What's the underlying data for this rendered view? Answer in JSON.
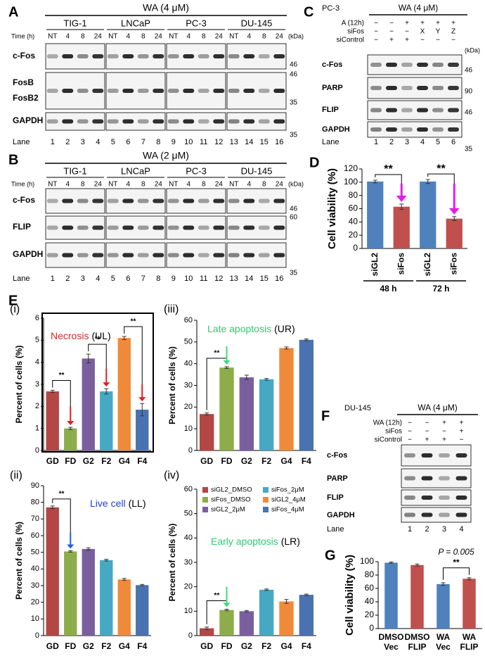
{
  "blots": {
    "A": {
      "letter": "A",
      "treatment": "WA (4 μM)",
      "cell_lines": [
        "TIG-1",
        "LNCaP",
        "PC-3",
        "DU-145"
      ],
      "time_label": "Time (h)",
      "times": [
        "NT",
        "4",
        "8",
        "24"
      ],
      "kda": "(kDa)",
      "rows": [
        "c-Fos",
        "FosB",
        "FosB2",
        "GAPDH"
      ],
      "markers": [
        "46",
        "46",
        "35",
        "35"
      ],
      "lane_label": "Lane",
      "lanes": [
        1,
        2,
        3,
        4,
        5,
        6,
        7,
        8,
        9,
        10,
        11,
        12,
        13,
        14,
        15,
        16
      ]
    },
    "B": {
      "letter": "B",
      "treatment": "WA (2 μM)",
      "cell_lines": [
        "TIG-1",
        "LNCaP",
        "PC-3",
        "DU-145"
      ],
      "time_label": "Time (h)",
      "times": [
        "NT",
        "4",
        "8",
        "24"
      ],
      "kda": "(kDa)",
      "rows": [
        "c-Fos",
        "FLIP",
        "GAPDH"
      ],
      "markers": [
        "46",
        "60",
        "35"
      ],
      "lane_label": "Lane",
      "lanes": [
        1,
        2,
        3,
        4,
        5,
        6,
        7,
        8,
        9,
        10,
        11,
        12,
        13,
        14,
        15,
        16
      ]
    },
    "C": {
      "letter": "C",
      "cell_line": "PC-3",
      "treatment": "WA (4 μM)",
      "conditions": [
        {
          "label": "A (12h)",
          "marks": [
            "−",
            "−",
            "+",
            "+",
            "+",
            "+"
          ]
        },
        {
          "label": "siFos",
          "marks": [
            "−",
            "−",
            "−",
            "X",
            "Y",
            "Z"
          ]
        },
        {
          "label": "siControl",
          "marks": [
            "−",
            "+",
            "+",
            "−",
            "−",
            "−"
          ]
        }
      ],
      "kda": "(kDa)",
      "rows": [
        "c-Fos",
        "PARP",
        "FLIP",
        "GAPDH"
      ],
      "markers": [
        "46",
        "90",
        "46",
        "35"
      ],
      "lane_label": "Lane",
      "lanes": [
        1,
        2,
        3,
        4,
        5,
        6
      ]
    },
    "F": {
      "letter": "F",
      "cell_line": "DU-145",
      "treatment": "WA (4 μM)",
      "conditions": [
        {
          "label": "WA (12h)",
          "marks": [
            "−",
            "−",
            "+",
            "+"
          ]
        },
        {
          "label": "siFos",
          "marks": [
            "−",
            "−",
            "−",
            "+"
          ]
        },
        {
          "label": "siControl",
          "marks": [
            "−",
            "+",
            "+",
            "−"
          ]
        }
      ],
      "rows": [
        "c-Fos",
        "PARP",
        "FLIP",
        "GAPDH"
      ],
      "lane_label": "Lane",
      "lanes": [
        1,
        2,
        3,
        4
      ]
    }
  },
  "section_E_letter": "E",
  "chart_data": [
    {
      "type": "bar",
      "letter": "D",
      "y_label": "Cell viability (%)",
      "categories": [
        "siGL2",
        "siFos",
        "siGL2",
        "siFos"
      ],
      "groups": [
        "48 h",
        "72 h"
      ],
      "values": [
        101,
        63,
        101,
        45
      ],
      "errors": [
        2,
        4,
        3,
        3
      ],
      "colors": [
        "#4f81bd",
        "#c0504d",
        "#4f81bd",
        "#c0504d"
      ],
      "ylim": [
        0,
        120
      ],
      "yticks": [
        0,
        20,
        40,
        60,
        80,
        100,
        120
      ],
      "annotations": [
        "**",
        "**"
      ]
    },
    {
      "type": "bar",
      "panel": "(i)",
      "title": "Necrosis",
      "region": "(UL)",
      "title_color": "#d62728",
      "y_label": "Percent of cells (%)",
      "categories": [
        "GD",
        "FD",
        "G2",
        "F2",
        "G4",
        "F4"
      ],
      "values": [
        2.68,
        1.0,
        4.17,
        2.68,
        5.1,
        1.85
      ],
      "errors": [
        0.05,
        0.05,
        0.2,
        0.12,
        0.07,
        0.28
      ],
      "colors": [
        "#b24745",
        "#8cad4a",
        "#7a5f9e",
        "#46a9c4",
        "#f08a3b",
        "#4a72b0"
      ],
      "ylim": [
        0,
        6
      ],
      "yticks": [
        0,
        1,
        2,
        3,
        4,
        5,
        6
      ],
      "annotations": [
        "**",
        "**",
        "**"
      ]
    },
    {
      "type": "bar",
      "panel": "(ii)",
      "title": "Live cell",
      "region": "(LL)",
      "title_color": "#1f3fd6",
      "y_label": "Percent of cells (%)",
      "categories": [
        "GD",
        "FD",
        "G2",
        "F2",
        "G4",
        "F4"
      ],
      "values": [
        77,
        50.5,
        52,
        45.3,
        33.7,
        30.3
      ],
      "errors": [
        0.8,
        0.4,
        0.7,
        0.5,
        0.6,
        0.4
      ],
      "colors": [
        "#b24745",
        "#8cad4a",
        "#7a5f9e",
        "#46a9c4",
        "#f08a3b",
        "#4a72b0"
      ],
      "ylim": [
        0,
        90
      ],
      "yticks": [
        0,
        10,
        20,
        30,
        40,
        50,
        60,
        70,
        80,
        90
      ],
      "annotations": [
        "**"
      ]
    },
    {
      "type": "bar",
      "panel": "(iii)",
      "title": "Late apoptosis",
      "region": "(UR)",
      "title_color": "#2ecc71",
      "y_label": "Percent of cells (%)",
      "categories": [
        "GD",
        "FD",
        "G2",
        "F2",
        "G4",
        "F4"
      ],
      "values": [
        16.8,
        38.2,
        33.7,
        32.8,
        47.2,
        51
      ],
      "errors": [
        0.5,
        0.4,
        1.0,
        0.4,
        0.5,
        0.4
      ],
      "colors": [
        "#b24745",
        "#8cad4a",
        "#7a5f9e",
        "#46a9c4",
        "#f08a3b",
        "#4a72b0"
      ],
      "ylim": [
        0,
        60
      ],
      "yticks": [
        0,
        10,
        20,
        30,
        40,
        50,
        60
      ],
      "annotations": [
        "**"
      ]
    },
    {
      "type": "bar",
      "panel": "(iv)",
      "title": "Early apoptosis",
      "region": "(LR)",
      "title_color": "#2ecc71",
      "y_label": "Percent of cells (%)",
      "categories": [
        "GD",
        "FD",
        "G2",
        "F2",
        "G4",
        "F4"
      ],
      "legend": [
        "siGL2_DMSO",
        "siFos_DMSO",
        "siGL2_2μM",
        "siFos_2μM",
        "siGL2_4μM",
        "siFos_4μM"
      ],
      "values": [
        3,
        10.5,
        10,
        18.8,
        14,
        16.7
      ],
      "errors": [
        0.5,
        0.3,
        0.3,
        0.3,
        0.8,
        0.3
      ],
      "colors": [
        "#b24745",
        "#8cad4a",
        "#7a5f9e",
        "#46a9c4",
        "#f08a3b",
        "#4a72b0"
      ],
      "ylim": [
        0,
        60
      ],
      "yticks": [
        0,
        10,
        20,
        30,
        40,
        50,
        60
      ],
      "annotations": [
        "**"
      ]
    },
    {
      "type": "bar",
      "letter": "G",
      "y_label": "Cell viability (%)",
      "categories": [
        [
          "DMSO",
          "Vec"
        ],
        [
          "DMSO",
          "FLIP"
        ],
        [
          "WA",
          "Vec"
        ],
        [
          "WA",
          "FLIP"
        ]
      ],
      "values": [
        98.5,
        95,
        66.5,
        74.5
      ],
      "errors": [
        1,
        1.5,
        2,
        1.5
      ],
      "colors": [
        "#4f81bd",
        "#c0504d",
        "#4f81bd",
        "#c0504d"
      ],
      "ylim": [
        0,
        100
      ],
      "yticks": [
        0,
        20,
        40,
        60,
        80,
        100
      ],
      "p_annotation": "P = 0.005",
      "annotations": [
        "**"
      ]
    }
  ]
}
